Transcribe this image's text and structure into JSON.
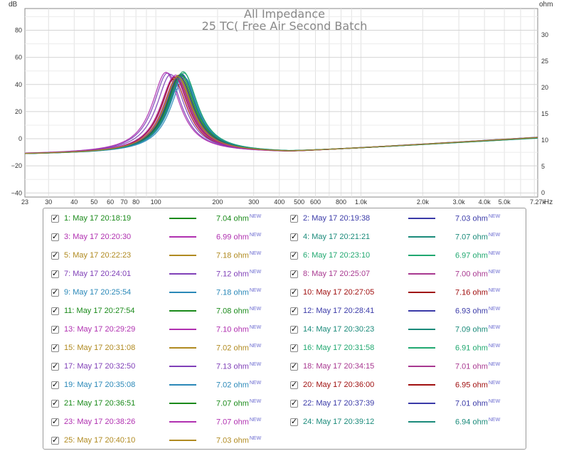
{
  "chart_data": {
    "type": "line",
    "title": "All Impedance",
    "subtitle": "25 TC( Free Air Second Batch",
    "x_unit": "Hz",
    "y_left_unit": "dB",
    "y_right_unit": "ohm",
    "x_scale": "log",
    "xlim": [
      23,
      7270
    ],
    "ylim_left": [
      -43,
      96
    ],
    "ylim_right": [
      -0.8,
      35
    ],
    "grid": true,
    "x_ticks": [
      {
        "value": 23,
        "label": "23"
      },
      {
        "value": 30,
        "label": "30"
      },
      {
        "value": 40,
        "label": "40"
      },
      {
        "value": 50,
        "label": "50"
      },
      {
        "value": 60,
        "label": "60"
      },
      {
        "value": 70,
        "label": "70"
      },
      {
        "value": 80,
        "label": "80"
      },
      {
        "value": 100,
        "label": "100"
      },
      {
        "value": 200,
        "label": "200"
      },
      {
        "value": 300,
        "label": "300"
      },
      {
        "value": 400,
        "label": "400"
      },
      {
        "value": 500,
        "label": "500"
      },
      {
        "value": 600,
        "label": "600"
      },
      {
        "value": 800,
        "label": "800"
      },
      {
        "value": 1000,
        "label": "1.0k"
      },
      {
        "value": 2000,
        "label": "2.0k"
      },
      {
        "value": 3000,
        "label": "3.0k"
      },
      {
        "value": 4000,
        "label": "4.0k"
      },
      {
        "value": 5000,
        "label": "5.0k"
      },
      {
        "value": 7270,
        "label": "7.27k"
      }
    ],
    "y_left_ticks": [
      -40,
      -20,
      0,
      20,
      40,
      60,
      80
    ],
    "y_right_ticks": [
      0,
      5,
      10,
      15,
      20,
      25,
      30
    ],
    "legend_placement": "below",
    "series": [
      {
        "name": "1: May 17 20:18:19",
        "value_label": "7.04 ohm",
        "color": "#1a8a1a",
        "peak_freq": 128,
        "peak_db": 46.5,
        "hf_db": 0.8
      },
      {
        "name": "2: May 17 20:19:38",
        "value_label": "7.03 ohm",
        "color": "#3a3aa8",
        "peak_freq": 130,
        "peak_db": 46.0,
        "hf_db": 0.9
      },
      {
        "name": "3: May 17 20:20:30",
        "value_label": "6.99 ohm",
        "color": "#b030b0",
        "peak_freq": 125,
        "peak_db": 47.0,
        "hf_db": 0.7
      },
      {
        "name": "4: May 17 20:21:21",
        "value_label": "7.07 ohm",
        "color": "#1a8a7a",
        "peak_freq": 133,
        "peak_db": 48.0,
        "hf_db": 0.5
      },
      {
        "name": "5: May 17 20:22:23",
        "value_label": "7.18 ohm",
        "color": "#b08a20",
        "peak_freq": 127,
        "peak_db": 45.5,
        "hf_db": 1.0
      },
      {
        "name": "6: May 17 20:23:10",
        "value_label": "6.97 ohm",
        "color": "#20a870",
        "peak_freq": 136,
        "peak_db": 49.5,
        "hf_db": 0.4
      },
      {
        "name": "7: May 17 20:24:01",
        "value_label": "7.12 ohm",
        "color": "#8040b8",
        "peak_freq": 114,
        "peak_db": 48.5,
        "hf_db": 0.9
      },
      {
        "name": "8: May 17 20:25:07",
        "value_label": "7.00 ohm",
        "color": "#a83890",
        "peak_freq": 126,
        "peak_db": 44.5,
        "hf_db": 0.6
      },
      {
        "name": "9: May 17 20:25:54",
        "value_label": "7.18 ohm",
        "color": "#2a88b8",
        "peak_freq": 138,
        "peak_db": 45.0,
        "hf_db": 1.0
      },
      {
        "name": "10: May 17 20:27:05",
        "value_label": "7.16 ohm",
        "color": "#a01010",
        "peak_freq": 122,
        "peak_db": 44.0,
        "hf_db": 0.8
      },
      {
        "name": "11: May 17 20:27:54",
        "value_label": "7.08 ohm",
        "color": "#1a8a1a",
        "peak_freq": 131,
        "peak_db": 46.0,
        "hf_db": 0.7
      },
      {
        "name": "12: May 17 20:28:41",
        "value_label": "6.93 ohm",
        "color": "#3a3aa8",
        "peak_freq": 134,
        "peak_db": 47.5,
        "hf_db": 0.6
      },
      {
        "name": "13: May 17 20:29:29",
        "value_label": "7.10 ohm",
        "color": "#b030b0",
        "peak_freq": 112,
        "peak_db": 49.0,
        "hf_db": 0.9
      },
      {
        "name": "14: May 17 20:30:23",
        "value_label": "7.09 ohm",
        "color": "#1a8a7a",
        "peak_freq": 135,
        "peak_db": 46.5,
        "hf_db": 0.5
      },
      {
        "name": "15: May 17 20:31:08",
        "value_label": "7.02 ohm",
        "color": "#b08a20",
        "peak_freq": 129,
        "peak_db": 47.0,
        "hf_db": 0.8
      },
      {
        "name": "16: May 17 20:31:58",
        "value_label": "6.91 ohm",
        "color": "#20a870",
        "peak_freq": 137,
        "peak_db": 48.5,
        "hf_db": 0.3
      },
      {
        "name": "17: May 17 20:32:50",
        "value_label": "7.13 ohm",
        "color": "#8040b8",
        "peak_freq": 118,
        "peak_db": 47.5,
        "hf_db": 0.9
      },
      {
        "name": "18: May 17 20:34:15",
        "value_label": "7.01 ohm",
        "color": "#a83890",
        "peak_freq": 127,
        "peak_db": 45.0,
        "hf_db": 0.7
      },
      {
        "name": "19: May 17 20:35:08",
        "value_label": "7.02 ohm",
        "color": "#2a88b8",
        "peak_freq": 136,
        "peak_db": 46.0,
        "hf_db": 0.8
      },
      {
        "name": "20: May 17 20:36:00",
        "value_label": "6.95 ohm",
        "color": "#a01010",
        "peak_freq": 124,
        "peak_db": 45.5,
        "hf_db": 0.6
      },
      {
        "name": "21: May 17 20:36:51",
        "value_label": "7.07 ohm",
        "color": "#1a8a1a",
        "peak_freq": 132,
        "peak_db": 47.0,
        "hf_db": 0.5
      },
      {
        "name": "22: May 17 20:37:39",
        "value_label": "7.01 ohm",
        "color": "#3a3aa8",
        "peak_freq": 130,
        "peak_db": 46.5,
        "hf_db": 0.7
      },
      {
        "name": "23: May 17 20:38:26",
        "value_label": "7.07 ohm",
        "color": "#b030b0",
        "peak_freq": 123,
        "peak_db": 46.0,
        "hf_db": 0.8
      },
      {
        "name": "24: May 17 20:39:12",
        "value_label": "6.94 ohm",
        "color": "#1a8a7a",
        "peak_freq": 134,
        "peak_db": 47.0,
        "hf_db": 0.4
      },
      {
        "name": "25: May 17 20:40:10",
        "value_label": "7.03 ohm",
        "color": "#b08a20",
        "peak_freq": 128,
        "peak_db": 46.0,
        "hf_db": 0.8
      }
    ]
  },
  "legend": {
    "checkmark": "✓",
    "new_tag": "NEW"
  }
}
